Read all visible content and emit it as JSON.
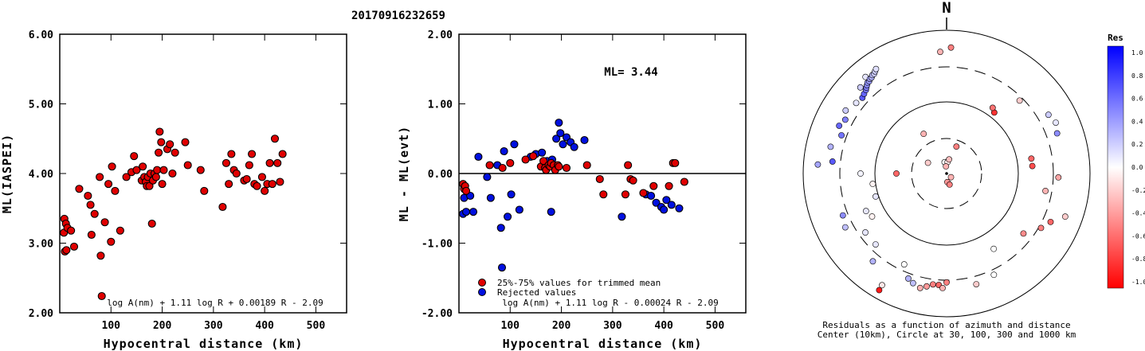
{
  "title": "20170916232659",
  "charts": [
    {
      "type": "scatter",
      "ylabel": "ML(IASPEI)",
      "xlabel": "Hypocentral distance (km)",
      "xlim": [
        0,
        560
      ],
      "ylim": [
        2.0,
        6.0
      ],
      "xticks": [
        "100",
        "200",
        "300",
        "400",
        "500"
      ],
      "yticks": [
        "2.00",
        "3.00",
        "4.00",
        "5.00",
        "6.00"
      ],
      "formula": "log A(nm) + 1.11 log R + 0.00189 R - 2.09",
      "points": [
        [
          8,
          3.15
        ],
        [
          9,
          3.35
        ],
        [
          10,
          2.88
        ],
        [
          12,
          3.28
        ],
        [
          13,
          2.9
        ],
        [
          15,
          3.22
        ],
        [
          22,
          3.18
        ],
        [
          28,
          2.95
        ],
        [
          38,
          3.78
        ],
        [
          55,
          3.68
        ],
        [
          60,
          3.55
        ],
        [
          62,
          3.12
        ],
        [
          68,
          3.42
        ],
        [
          78,
          3.95
        ],
        [
          80,
          2.82
        ],
        [
          82,
          2.24
        ],
        [
          88,
          3.3
        ],
        [
          95,
          3.85
        ],
        [
          100,
          3.02
        ],
        [
          102,
          4.1
        ],
        [
          108,
          3.75
        ],
        [
          118,
          3.18
        ],
        [
          130,
          3.95
        ],
        [
          140,
          4.02
        ],
        [
          145,
          4.25
        ],
        [
          150,
          4.05
        ],
        [
          160,
          3.9
        ],
        [
          162,
          4.1
        ],
        [
          165,
          3.95
        ],
        [
          168,
          3.88
        ],
        [
          170,
          3.82
        ],
        [
          172,
          3.95
        ],
        [
          175,
          3.82
        ],
        [
          177,
          4.0
        ],
        [
          180,
          3.28
        ],
        [
          182,
          3.9
        ],
        [
          185,
          4.0
        ],
        [
          188,
          3.95
        ],
        [
          190,
          4.05
        ],
        [
          193,
          4.3
        ],
        [
          195,
          4.6
        ],
        [
          198,
          4.45
        ],
        [
          200,
          3.85
        ],
        [
          203,
          4.05
        ],
        [
          210,
          4.35
        ],
        [
          215,
          4.42
        ],
        [
          220,
          4.0
        ],
        [
          225,
          4.3
        ],
        [
          245,
          4.45
        ],
        [
          250,
          4.12
        ],
        [
          275,
          4.05
        ],
        [
          282,
          3.75
        ],
        [
          318,
          3.52
        ],
        [
          325,
          4.15
        ],
        [
          330,
          3.85
        ],
        [
          335,
          4.28
        ],
        [
          340,
          4.05
        ],
        [
          345,
          4.0
        ],
        [
          360,
          3.9
        ],
        [
          365,
          3.92
        ],
        [
          370,
          4.12
        ],
        [
          375,
          4.28
        ],
        [
          380,
          3.85
        ],
        [
          385,
          3.82
        ],
        [
          395,
          3.95
        ],
        [
          400,
          3.75
        ],
        [
          405,
          3.85
        ],
        [
          410,
          4.15
        ],
        [
          415,
          3.85
        ],
        [
          420,
          4.5
        ],
        [
          425,
          4.15
        ],
        [
          430,
          3.88
        ],
        [
          435,
          4.28
        ]
      ]
    },
    {
      "type": "scatter",
      "ylabel": "ML - ML(evt)",
      "xlabel": "Hypocentral distance (km)",
      "xlim": [
        0,
        560
      ],
      "ylim": [
        -2.0,
        2.0
      ],
      "xticks": [
        "100",
        "200",
        "300",
        "400",
        "500"
      ],
      "yticks": [
        "-2.00",
        "-1.00",
        "0.00",
        "1.00",
        "2.00"
      ],
      "annotation": "ML= 3.44",
      "legend": [
        "25%-75% values for trimmed mean",
        "Rejected values"
      ],
      "formula": "log A(nm) + 1.11 log R - 0.00024 R - 2.09",
      "points_trimmed": [
        [
          8,
          -0.15
        ],
        [
          10,
          -0.22
        ],
        [
          12,
          -0.18
        ],
        [
          14,
          -0.25
        ],
        [
          60,
          0.12
        ],
        [
          85,
          0.08
        ],
        [
          100,
          0.15
        ],
        [
          130,
          0.2
        ],
        [
          145,
          0.25
        ],
        [
          160,
          0.1
        ],
        [
          165,
          0.18
        ],
        [
          168,
          0.08
        ],
        [
          170,
          0.05
        ],
        [
          175,
          0.12
        ],
        [
          178,
          0.1
        ],
        [
          180,
          0.15
        ],
        [
          185,
          0.12
        ],
        [
          188,
          0.05
        ],
        [
          193,
          0.12
        ],
        [
          195,
          0.1
        ],
        [
          210,
          0.08
        ],
        [
          250,
          0.12
        ],
        [
          275,
          -0.08
        ],
        [
          282,
          -0.3
        ],
        [
          325,
          -0.3
        ],
        [
          330,
          0.12
        ],
        [
          335,
          -0.08
        ],
        [
          340,
          -0.1
        ],
        [
          360,
          -0.28
        ],
        [
          380,
          -0.18
        ],
        [
          410,
          -0.18
        ],
        [
          418,
          0.15
        ],
        [
          422,
          0.15
        ],
        [
          440,
          -0.12
        ]
      ],
      "points_rejected": [
        [
          8,
          -0.58
        ],
        [
          10,
          -0.35
        ],
        [
          14,
          -0.55
        ],
        [
          22,
          -0.32
        ],
        [
          28,
          -0.55
        ],
        [
          38,
          0.24
        ],
        [
          55,
          -0.05
        ],
        [
          62,
          -0.35
        ],
        [
          75,
          0.12
        ],
        [
          82,
          -0.78
        ],
        [
          84,
          -1.35
        ],
        [
          88,
          0.32
        ],
        [
          95,
          -0.62
        ],
        [
          102,
          -0.3
        ],
        [
          108,
          0.42
        ],
        [
          118,
          -0.52
        ],
        [
          140,
          0.24
        ],
        [
          150,
          0.28
        ],
        [
          162,
          0.3
        ],
        [
          172,
          0.18
        ],
        [
          180,
          -0.55
        ],
        [
          182,
          0.2
        ],
        [
          190,
          0.5
        ],
        [
          195,
          0.73
        ],
        [
          198,
          0.58
        ],
        [
          203,
          0.42
        ],
        [
          210,
          0.52
        ],
        [
          218,
          0.45
        ],
        [
          225,
          0.38
        ],
        [
          245,
          0.48
        ],
        [
          318,
          -0.62
        ],
        [
          365,
          -0.3
        ],
        [
          375,
          -0.32
        ],
        [
          385,
          -0.42
        ],
        [
          395,
          -0.48
        ],
        [
          400,
          -0.52
        ],
        [
          405,
          -0.38
        ],
        [
          415,
          -0.45
        ],
        [
          430,
          -0.5
        ]
      ]
    },
    {
      "type": "polar-scatter",
      "north_label": "N",
      "caption_line1": "Residuals as a function of azimuth and distance",
      "caption_line2": "Center (10km), Circle at 30, 100, 300 and 1000 km",
      "colorbar_title": "Res",
      "colorbar_ticks": [
        "1.0",
        "0.8",
        "0.6",
        "0.4",
        "0.2",
        "0.0",
        "-0.2",
        "-0.4",
        "-0.6",
        "-0.8",
        "-1.0"
      ],
      "colors": {
        "positive": "#0000ff",
        "negative": "#ff0000",
        "neutral": "#ffffff"
      },
      "points": [
        [
          -3,
          0.85,
          -0.3
        ],
        [
          2,
          0.88,
          -0.5
        ],
        [
          -45,
          0.85,
          0.2
        ],
        [
          -40,
          0.88,
          0.1
        ],
        [
          -48,
          0.79,
          0.65
        ],
        [
          -46,
          0.8,
          0.6
        ],
        [
          -44,
          0.81,
          0.55
        ],
        [
          -43,
          0.82,
          0.5
        ],
        [
          -42,
          0.83,
          0.45
        ],
        [
          -41,
          0.84,
          0.42
        ],
        [
          -40,
          0.84,
          0.4
        ],
        [
          -39,
          0.85,
          0.35
        ],
        [
          -38,
          0.85,
          0.3
        ],
        [
          -37,
          0.86,
          0.25
        ],
        [
          -36,
          0.86,
          0.2
        ],
        [
          -35,
          0.87,
          0.18
        ],
        [
          -34,
          0.88,
          0.12
        ],
        [
          -52,
          0.8,
          0.1
        ],
        [
          -58,
          0.83,
          0.2
        ],
        [
          -62,
          0.8,
          0.5
        ],
        [
          -66,
          0.82,
          0.6
        ],
        [
          -70,
          0.78,
          0.55
        ],
        [
          -77,
          0.83,
          0.3
        ],
        [
          -84,
          0.8,
          0.65
        ],
        [
          -86,
          0.9,
          0.35
        ],
        [
          -90,
          0.6,
          0.05
        ],
        [
          -98,
          0.52,
          -0.05
        ],
        [
          -108,
          0.52,
          0.1
        ],
        [
          -115,
          0.62,
          0.1
        ],
        [
          -112,
          0.78,
          0.45
        ],
        [
          -118,
          0.8,
          0.25
        ],
        [
          -126,
          0.7,
          0.1
        ],
        [
          -120,
          0.6,
          -0.05
        ],
        [
          -135,
          0.7,
          0.1
        ],
        [
          -140,
          0.8,
          0.3
        ],
        [
          -150,
          0.9,
          -0.1
        ],
        [
          -155,
          0.7,
          0.0
        ],
        [
          -160,
          0.78,
          0.3
        ],
        [
          -163,
          0.8,
          0.25
        ],
        [
          -167,
          0.82,
          -0.3
        ],
        [
          -170,
          0.8,
          -0.4
        ],
        [
          -173,
          0.78,
          -0.5
        ],
        [
          -176,
          0.78,
          -0.6
        ],
        [
          -178,
          0.8,
          -0.3
        ],
        [
          -180,
          0.76,
          -0.5
        ],
        [
          -150,
          0.94,
          -0.9
        ],
        [
          155,
          0.78,
          0.0
        ],
        [
          165,
          0.8,
          -0.2
        ],
        [
          148,
          0.62,
          0.0
        ],
        [
          128,
          0.68,
          -0.45
        ],
        [
          120,
          0.76,
          -0.5
        ],
        [
          115,
          0.8,
          -0.6
        ],
        [
          100,
          0.7,
          -0.3
        ],
        [
          92,
          0.78,
          -0.35
        ],
        [
          110,
          0.88,
          -0.2
        ],
        [
          85,
          0.6,
          -0.7
        ],
        [
          80,
          0.6,
          -0.6
        ],
        [
          70,
          0.82,
          0.45
        ],
        [
          60,
          0.82,
          0.2
        ],
        [
          65,
          0.84,
          0.1
        ],
        [
          45,
          0.72,
          -0.2
        ],
        [
          38,
          0.54,
          -0.8
        ],
        [
          35,
          0.56,
          -0.55
        ],
        [
          -30,
          0.32,
          -0.3
        ],
        [
          -90,
          0.35,
          -0.6
        ],
        [
          20,
          0.2,
          -0.5
        ],
        [
          -60,
          0.15,
          -0.2
        ],
        [
          -10,
          0.08,
          0.0
        ],
        [
          5,
          0.08,
          -0.1
        ],
        [
          10,
          0.1,
          -0.25
        ],
        [
          -5,
          0.05,
          -0.3
        ],
        [
          175,
          0.06,
          -0.4
        ],
        [
          165,
          0.08,
          -0.5
        ],
        [
          130,
          0.04,
          -0.3
        ]
      ]
    }
  ]
}
